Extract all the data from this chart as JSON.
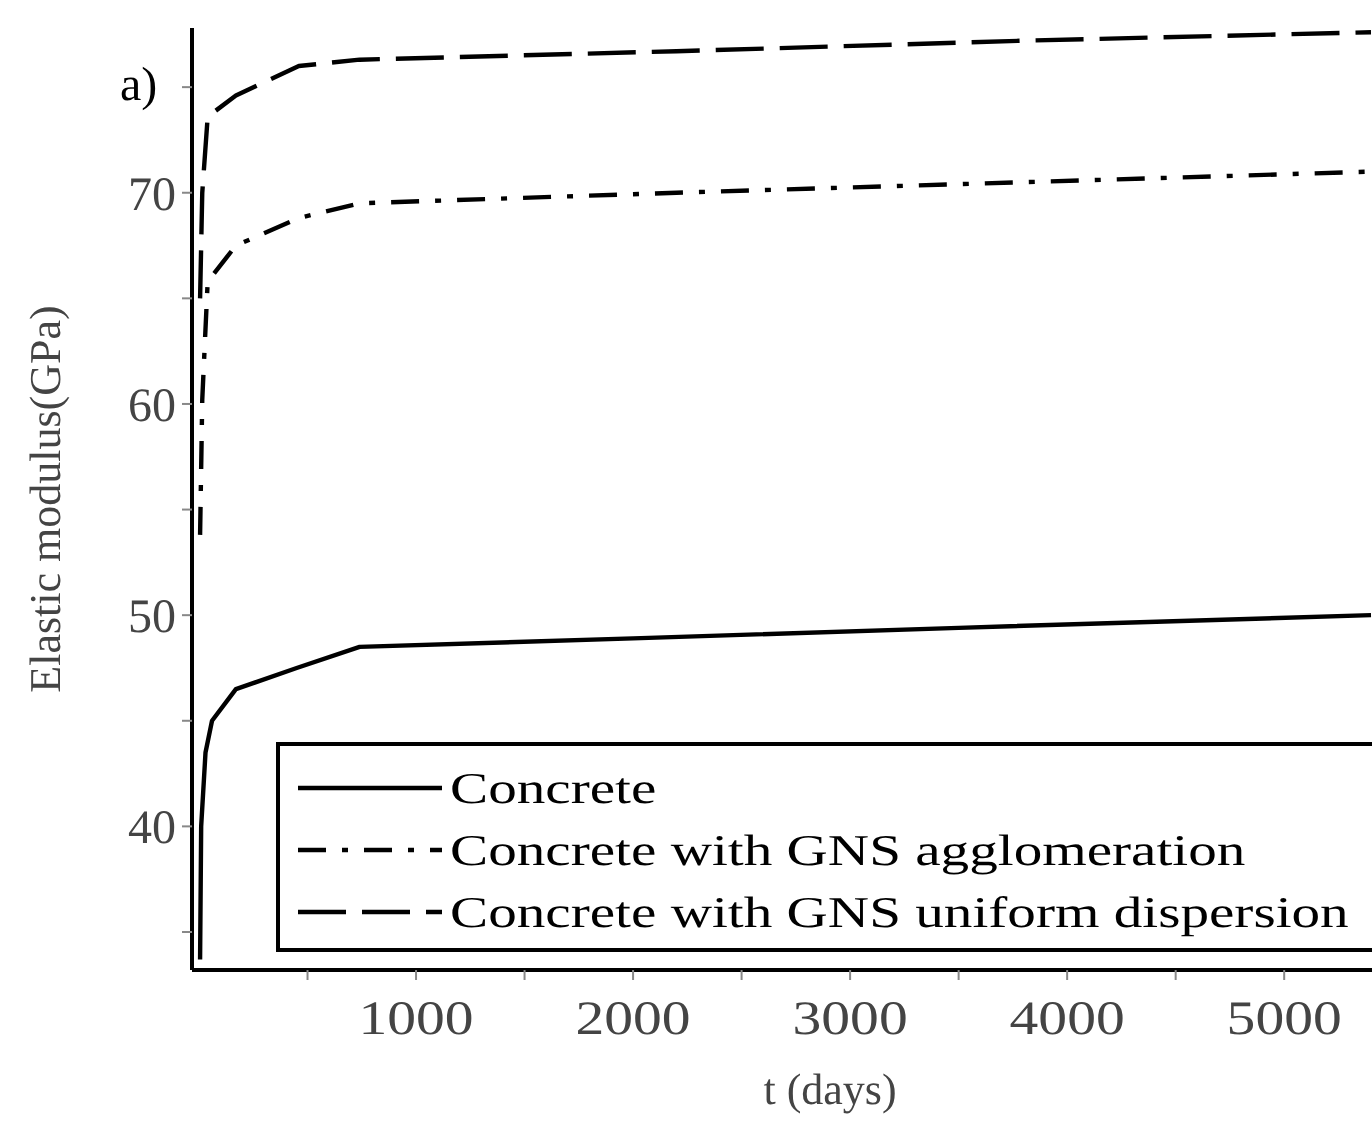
{
  "chart_data": {
    "type": "line",
    "xlabel": "t (days)",
    "ylabel": "Elastic modulus(GPa)",
    "annotations": [
      "a)"
    ],
    "xlim": [
      0,
      5400
    ],
    "ylim": [
      33.2,
      77.8
    ],
    "xticks": [
      {
        "value": 500,
        "label": null
      },
      1000,
      {
        "value": 1500,
        "label": null
      },
      2000,
      {
        "value": 2500,
        "label": null
      },
      3000,
      {
        "value": 3500,
        "label": null
      },
      4000,
      {
        "value": 4500,
        "label": null
      },
      5000
    ],
    "yticks": [
      {
        "value": 35,
        "label": null
      },
      40,
      {
        "value": 45,
        "label": null
      },
      50,
      {
        "value": 55,
        "label": null
      },
      60,
      {
        "value": 65,
        "label": null
      },
      70,
      {
        "value": 75,
        "label": null
      }
    ],
    "grid": false,
    "legend": "bottom right",
    "series": [
      {
        "name": "Concrete",
        "color": "#000000",
        "line_style": "solid",
        "x": [
          5,
          10,
          30,
          60,
          170,
          450,
          740,
          2000,
          3500,
          5400
        ],
        "values": [
          33.7,
          40,
          43.5,
          45,
          46.5,
          47.5,
          48.5,
          48.9,
          49.4,
          50
        ]
      },
      {
        "name": "Concrete with GNS agglomeration",
        "color": "#000000",
        "line_style": "dashdot",
        "x": [
          5,
          15,
          40,
          170,
          460,
          740,
          2200,
          3800,
          5400
        ],
        "values": [
          53.8,
          60.2,
          65.8,
          67.5,
          68.8,
          69.5,
          70,
          70.5,
          71
        ]
      },
      {
        "name": "Concrete with GNS uniform dispersion",
        "color": "#000000",
        "line_style": "dashed",
        "x": [
          5,
          15,
          40,
          170,
          460,
          740,
          2200,
          3800,
          5400
        ],
        "values": [
          65,
          70,
          73.6,
          74.6,
          76,
          76.3,
          76.7,
          77.2,
          77.6
        ]
      }
    ]
  }
}
